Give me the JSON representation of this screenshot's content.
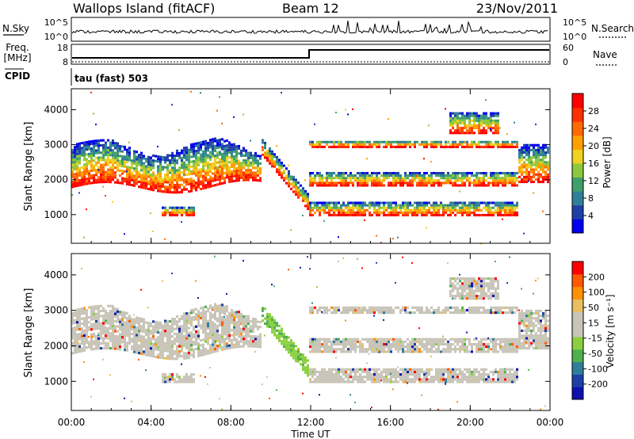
{
  "header": {
    "station": "Wallops Island (fitACF)",
    "beam": "Beam 12",
    "date": "23/Nov/2011"
  },
  "ops": {
    "nsky_label": "N.Sky",
    "nsearch_label": "N.Search",
    "freq_label": "Freq.",
    "freq_unit": "[MHz]",
    "nave_label": "Nave",
    "cpid_label": "CPID",
    "cpid_value": "tau (fast) 503",
    "nsky_ticks": [
      "10^5",
      "10^0"
    ],
    "nsearch_ticks": [
      "10^5",
      "10^0"
    ],
    "freq_ticks": [
      "18",
      "8"
    ],
    "nave_ticks": [
      "60",
      "0"
    ]
  },
  "colors": {
    "power_scale": [
      "#0000ee",
      "#1e3ea8",
      "#2f7f9a",
      "#3f9f6a",
      "#8cc83c",
      "#f0d020",
      "#ffa000",
      "#ff6a00",
      "#ff3000",
      "#ff0000"
    ],
    "velocity_scale": [
      "#ff0000",
      "#ff5a00",
      "#ff9000",
      "#e8c060",
      "#c8c4b8",
      "#c8c4b8",
      "#8cd040",
      "#4fb04f",
      "#2f7f9a",
      "#1e3ea8",
      "#1010b0"
    ]
  },
  "chart_data": [
    {
      "type": "heatmap",
      "name": "power",
      "ylabel": "Slant Range [km]",
      "yticks": [
        1000,
        2000,
        3000,
        4000
      ],
      "ylim": [
        180,
        4600
      ],
      "xlim_hours": [
        0,
        24
      ],
      "colorbar": {
        "label": "Power [dB]",
        "ticks": [
          "4",
          "8",
          "12",
          "16",
          "20",
          "24",
          "28"
        ],
        "range": [
          0,
          30
        ]
      }
    },
    {
      "type": "heatmap",
      "name": "velocity",
      "ylabel": "Slant Range [km]",
      "yticks": [
        1000,
        2000,
        3000,
        4000
      ],
      "ylim": [
        180,
        4600
      ],
      "xlim_hours": [
        0,
        24
      ],
      "colorbar": {
        "label": "Velocity [m s⁻¹]",
        "ticks": [
          "200",
          "100",
          "50",
          "15",
          "-15",
          "-50",
          "-100",
          "-200"
        ]
      }
    }
  ],
  "xaxis": {
    "ticks": [
      "00:00",
      "04:00",
      "08:00",
      "12:00",
      "16:00",
      "20:00",
      "00:00"
    ],
    "label": "Time UT"
  }
}
